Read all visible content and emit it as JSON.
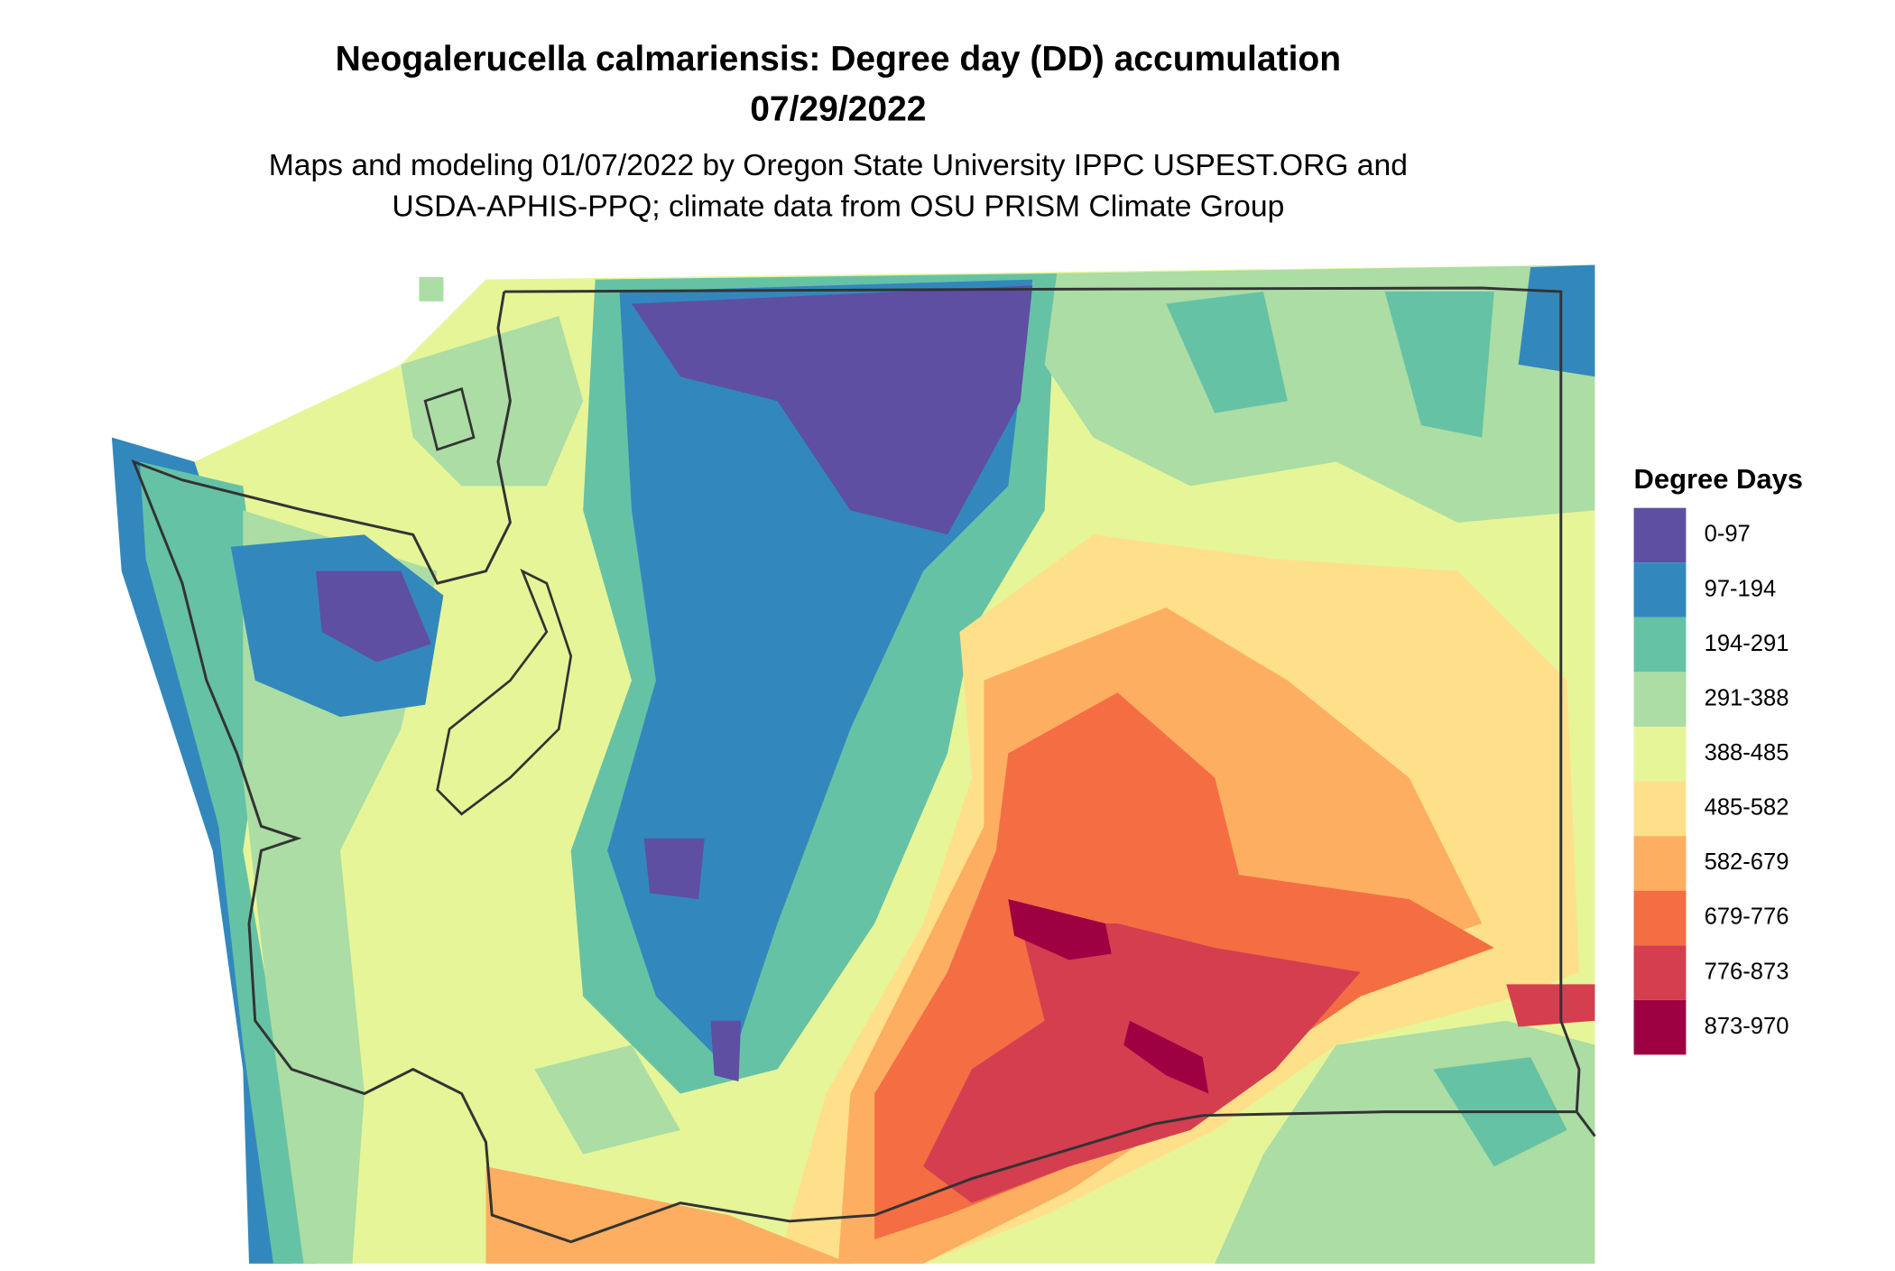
{
  "title": [
    "Neogalerucella calmariensis: Degree day (DD) accumulation",
    "07/29/2022"
  ],
  "subtitle": [
    "Maps and modeling 01/07/2022 by Oregon State University IPPC USPEST.ORG and",
    "USDA-APHIS-PPQ; climate data from OSU PRISM Climate Group"
  ],
  "legend": {
    "title": "Degree Days",
    "items": [
      {
        "label": "0-97",
        "color": "#5E4FA2"
      },
      {
        "label": "97-194",
        "color": "#3288BD"
      },
      {
        "label": "194-291",
        "color": "#66C2A5"
      },
      {
        "label": "291-388",
        "color": "#ABDDA4"
      },
      {
        "label": "388-485",
        "color": "#E6F598"
      },
      {
        "label": "485-582",
        "color": "#FEE08B"
      },
      {
        "label": "582-679",
        "color": "#FDAE61"
      },
      {
        "label": "679-776",
        "color": "#F46D43"
      },
      {
        "label": "776-873",
        "color": "#D53E4F"
      },
      {
        "label": "873-970",
        "color": "#9E0142"
      }
    ]
  }
}
